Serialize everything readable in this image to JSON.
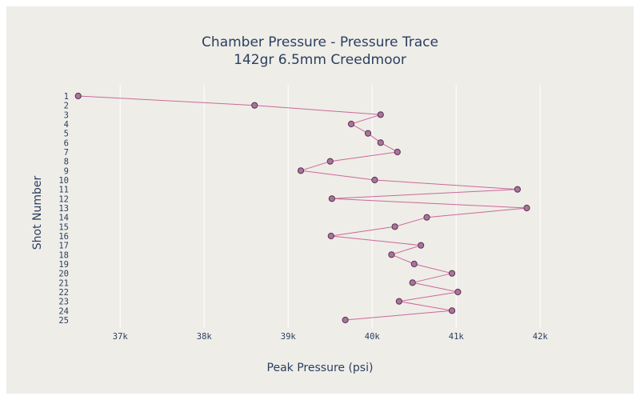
{
  "chart_data": {
    "type": "line",
    "title": "Chamber Pressure - Pressure Trace",
    "subtitle": "142gr 6.5mm Creedmoor",
    "xlabel": "Peak Pressure (psi)",
    "ylabel": "Shot Number",
    "xlim": [
      36550,
      42550
    ],
    "x_ticks": [
      37000,
      38000,
      39000,
      40000,
      41000,
      42000
    ],
    "x_tick_labels": [
      "37k",
      "38k",
      "39k",
      "40k",
      "41k",
      "42k"
    ],
    "y_order": "reversed",
    "grid": {
      "x": true,
      "y": false
    },
    "categories": [
      "1",
      "2",
      "3",
      "4",
      "5",
      "6",
      "7",
      "8",
      "9",
      "10",
      "11",
      "12",
      "13",
      "14",
      "15",
      "16",
      "17",
      "18",
      "19",
      "20",
      "21",
      "22",
      "23",
      "24",
      "25"
    ],
    "series": [
      {
        "mode": "lines+markers",
        "line_color": "#c9699a",
        "marker_color": "#a8749a",
        "marker_outline": "#5a3050",
        "values": [
          36500,
          38600,
          40100,
          39750,
          39950,
          40100,
          40300,
          39500,
          39150,
          40030,
          41730,
          39520,
          41840,
          40650,
          40270,
          39510,
          40580,
          40230,
          40500,
          40950,
          40480,
          41020,
          40320,
          40950,
          39680
        ]
      }
    ]
  }
}
